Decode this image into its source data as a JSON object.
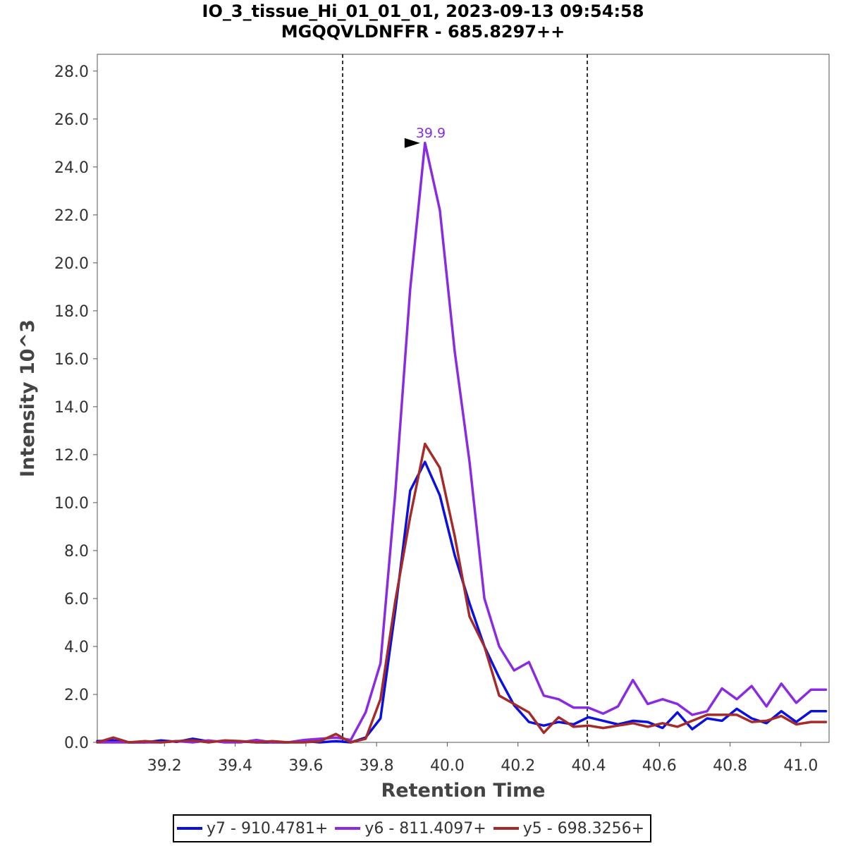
{
  "chart_data": {
    "type": "line",
    "title": "IO_3_tissue_Hi_01_01_01, 2023-09-13 09:54:58",
    "subtitle": "MGQQVLDNFFR - 685.8297++",
    "xlabel": "Retention Time",
    "ylabel": "Intensity 10^3",
    "xlim": [
      39.01,
      41.08
    ],
    "ylim": [
      0,
      28.7
    ],
    "xticks": [
      39.2,
      39.4,
      39.6,
      39.8,
      40.0,
      40.2,
      40.4,
      40.6,
      40.8,
      41.0
    ],
    "xtick_labels": [
      "39.2",
      "39.4",
      "39.6",
      "39.8",
      "40.0",
      "40.2",
      "40.4",
      "40.6",
      "40.8",
      "41.0"
    ],
    "yticks": [
      0,
      2,
      4,
      6,
      8,
      10,
      12,
      14,
      16,
      18,
      20,
      22,
      24,
      26,
      28
    ],
    "ytick_labels": [
      "0.0",
      "2.0",
      "4.0",
      "6.0",
      "8.0",
      "10.0",
      "12.0",
      "14.0",
      "16.0",
      "18.0",
      "20.0",
      "22.0",
      "24.0",
      "26.0",
      "28.0"
    ],
    "grid": false,
    "legend_position": "bottom",
    "boundaries": [
      39.704,
      40.396
    ],
    "peak_annotation": {
      "label": "39.9",
      "x": 39.935,
      "y": 25.0,
      "color": "#8a2be2"
    },
    "x": [
      39.01,
      39.055,
      39.1,
      39.145,
      39.19,
      39.235,
      39.28,
      39.325,
      39.37,
      39.415,
      39.46,
      39.505,
      39.55,
      39.595,
      39.64,
      39.685,
      39.727,
      39.769,
      39.811,
      39.853,
      39.895,
      39.937,
      39.979,
      40.021,
      40.063,
      40.105,
      40.147,
      40.189,
      40.231,
      40.273,
      40.315,
      40.357,
      40.399,
      40.441,
      40.483,
      40.525,
      40.567,
      40.609,
      40.651,
      40.693,
      40.735,
      40.777,
      40.819,
      40.861,
      40.903,
      40.945,
      40.987,
      41.029,
      41.071
    ],
    "series": [
      {
        "name": "y7 - 910.4781+",
        "color": "#0a10e0",
        "values": [
          0.05,
          0.08,
          0.0,
          0.0,
          0.08,
          0.02,
          0.15,
          0.04,
          0.04,
          0.04,
          0.0,
          0.0,
          0.0,
          0.05,
          0.0,
          0.05,
          0.0,
          0.2,
          1.0,
          5.5,
          10.5,
          11.7,
          10.3,
          7.8,
          5.8,
          4.0,
          2.7,
          1.55,
          0.85,
          0.7,
          0.85,
          0.75,
          1.05,
          0.9,
          0.75,
          0.9,
          0.85,
          0.6,
          1.25,
          0.55,
          1.0,
          0.9,
          1.4,
          1.0,
          0.8,
          1.3,
          0.85,
          1.3,
          1.3
        ]
      },
      {
        "name": "y6 - 811.4097+",
        "color": "#8a2be2",
        "values": [
          0.0,
          0.0,
          0.0,
          0.0,
          0.0,
          0.05,
          0.0,
          0.08,
          0.0,
          0.0,
          0.1,
          0.0,
          0.0,
          0.1,
          0.15,
          0.2,
          0.1,
          1.25,
          3.3,
          10.4,
          18.9,
          25.0,
          22.2,
          16.3,
          11.7,
          6.0,
          4.0,
          3.0,
          3.35,
          1.95,
          1.8,
          1.45,
          1.45,
          1.2,
          1.5,
          2.6,
          1.6,
          1.8,
          1.6,
          1.15,
          1.3,
          2.25,
          1.8,
          2.35,
          1.5,
          2.45,
          1.65,
          2.2,
          2.2
        ]
      },
      {
        "name": "y5 - 698.3256+",
        "color": "#a52a2a",
        "values": [
          0.0,
          0.2,
          0.0,
          0.05,
          0.0,
          0.05,
          0.08,
          0.0,
          0.08,
          0.05,
          0.0,
          0.05,
          0.0,
          0.0,
          0.05,
          0.35,
          0.0,
          0.15,
          1.8,
          5.9,
          9.4,
          12.45,
          11.45,
          8.6,
          5.25,
          4.0,
          1.95,
          1.6,
          1.25,
          0.4,
          1.05,
          0.65,
          0.7,
          0.6,
          0.7,
          0.8,
          0.65,
          0.8,
          0.65,
          0.9,
          1.15,
          1.15,
          1.15,
          0.85,
          0.9,
          1.1,
          0.75,
          0.85,
          0.85
        ]
      }
    ]
  }
}
